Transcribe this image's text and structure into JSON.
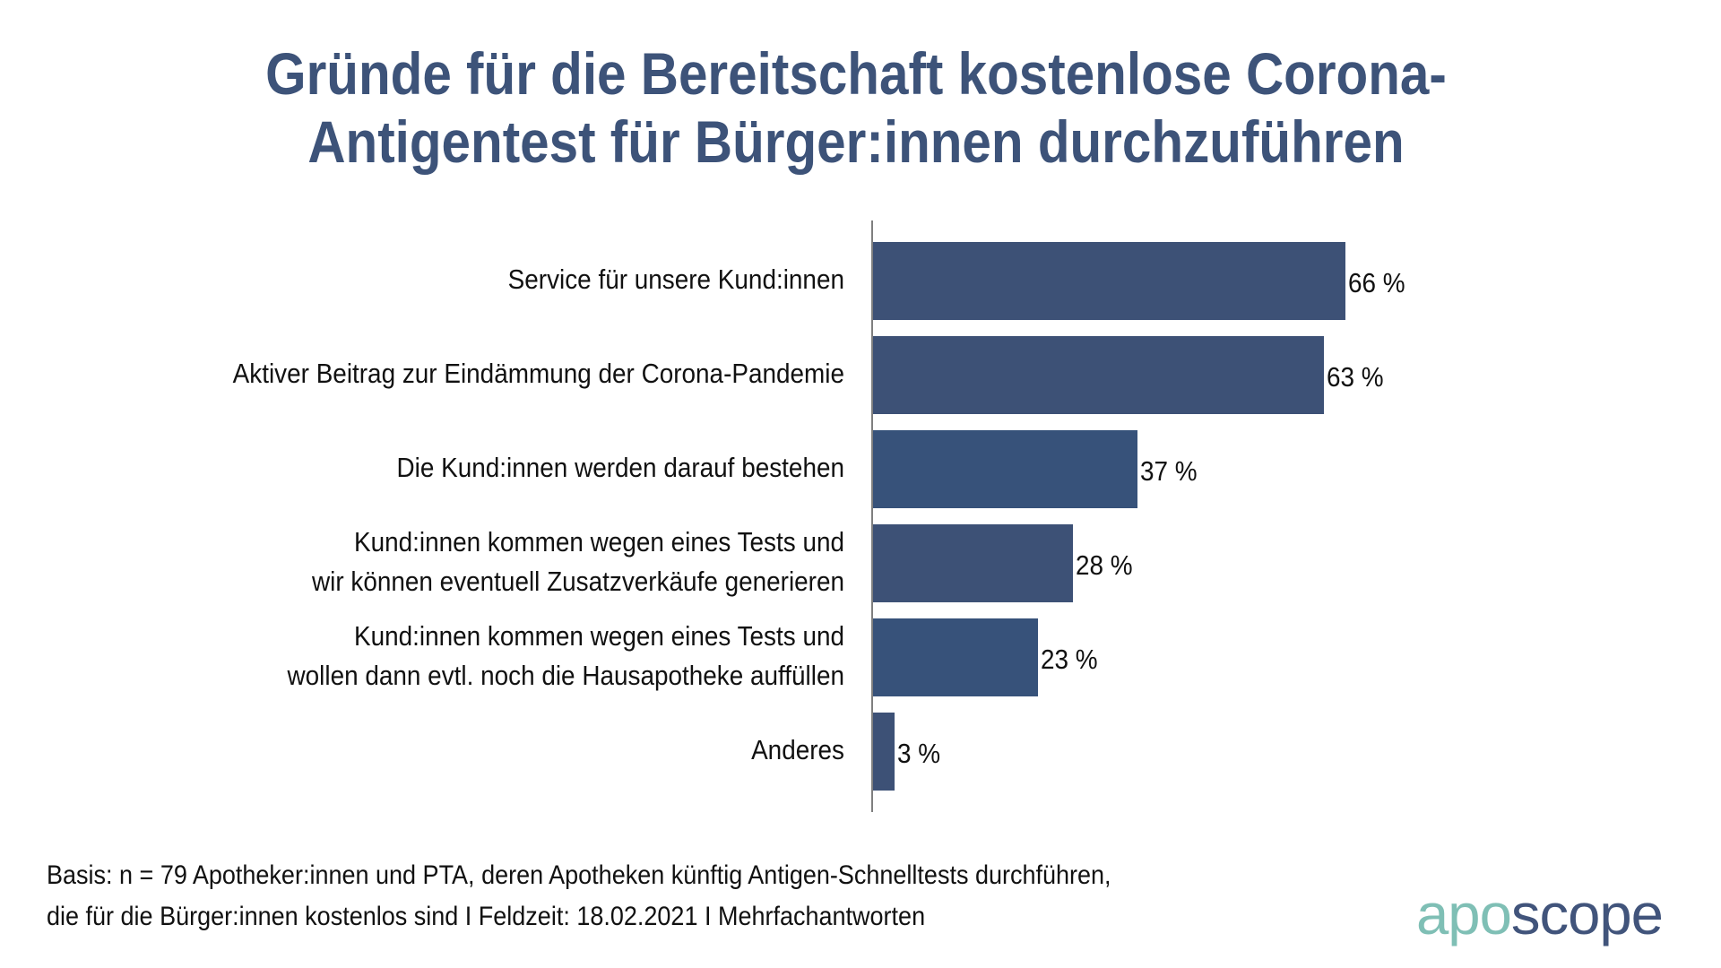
{
  "colors": {
    "title": "#3d5379",
    "bar_primary": "#3d5176",
    "bar_secondary": "#37527a",
    "axis": "#7f7f7f",
    "logo_apo": "#7fbfb5",
    "logo_scope": "#41547b"
  },
  "chart_data": {
    "type": "bar",
    "orientation": "horizontal",
    "title": "Gründe für die Bereitschaft kostenlose Corona-Antigentest für Bürger:innen durchzuführen",
    "title_lines": [
      "Gründe für die Bereitschaft kostenlose Corona-",
      "Antigentest für Bürger:innen durchzuführen"
    ],
    "xlabel": "",
    "ylabel": "",
    "unit": "%",
    "xlim": [
      0,
      100
    ],
    "grid": false,
    "legend": "none",
    "categories": [
      {
        "lines": [
          "Service für unsere Kund:innen"
        ]
      },
      {
        "lines": [
          "Aktiver Beitrag zur Eindämmung der Corona-Pandemie"
        ]
      },
      {
        "lines": [
          "Die Kund:innen werden darauf bestehen"
        ]
      },
      {
        "lines": [
          "Kund:innen kommen wegen eines Tests und",
          "wir können eventuell Zusatzverkäufe generieren"
        ]
      },
      {
        "lines": [
          "Kund:innen kommen wegen eines Tests und",
          "wollen dann evtl. noch die Hausapotheke auffüllen"
        ]
      },
      {
        "lines": [
          "Anderes"
        ]
      }
    ],
    "values": [
      66,
      63,
      37,
      28,
      23,
      3
    ],
    "value_labels": [
      "66 %",
      "63 %",
      "37 %",
      "28 %",
      "23 %",
      "3 %"
    ],
    "bar_color_keys": [
      "bar_primary",
      "bar_primary",
      "bar_secondary",
      "bar_primary",
      "bar_secondary",
      "bar_primary"
    ]
  },
  "footnote": {
    "lines": [
      "Basis: n = 79 Apotheker:innen und PTA, deren Apotheken künftig Antigen-Schnelltests durchführen,",
      "die für die Bürger:innen kostenlos sind I Feldzeit: 18.02.2021 I Mehrfachantworten"
    ]
  },
  "logo": {
    "part1": "apo",
    "part2": "scope"
  }
}
